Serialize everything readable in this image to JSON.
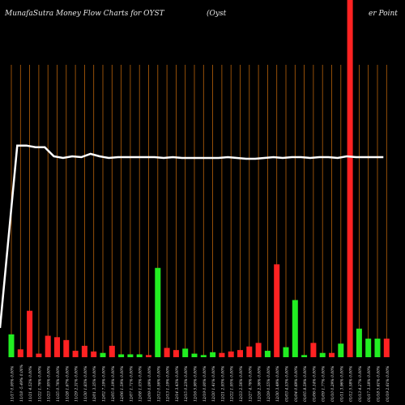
{
  "header": {
    "title": "MunafaSutra  Money Flow  Charts for OYST",
    "company_left": "(Oyst",
    "company_right": "er Point"
  },
  "colors": {
    "background": "#000000",
    "grid": "#b8620a",
    "up": "#22ee22",
    "down": "#ff2222",
    "line": "#ffffff",
    "text": "#e8e8e8"
  },
  "chart_data": {
    "type": "bar",
    "grid": "vertical",
    "categories": [
      "11/17 0.00% 0.00%",
      "11/18 -5.49% 0.00%",
      "11/21 4.52% 0.00%",
      "11/22 1.76% 0.00%",
      "11/23 7.95% 0.00%",
      "11/25 0.76% 0.00%",
      "11/28 1.67% 0.00%",
      "11/29 2.31% 0.00%",
      "11/30 1.83% 0.00%",
      "12/01 3.35% 0.00%",
      "12/02 7.19% 0.00%",
      "12/05 0.19% 0.00%",
      "12/06 1.59% 0.00%",
      "12/07 1.71% 0.00%",
      "12/08 1.03% 0.00%",
      "12/09 0.09% 0.00%",
      "12/12 0.56% 0.00%",
      "12/13 1.19% 0.00%",
      "12/14 3.43% 0.00%",
      "12/15 0.23% 0.00%",
      "12/16 5.90% 0.00%",
      "12/19 0.00% 0.00%",
      "12/20 1.41% 0.00%",
      "12/21 2.93% 0.00%",
      "12/22 1.95% 0.00%",
      "12/23 2.56% 0.00%",
      "12/27 4.76% 0.00%",
      "12/28 2.36% 0.00%",
      "12/29 0.55% 0.00%",
      "12/30 3.49% 0.00%",
      "01/03 4.53% 0.00%",
      "01/04 0.69% 0.00%",
      "01/05 8.59% 0.00%",
      "01/06 0.14% 0.00%",
      "01/09 1.77% 0.00%",
      "01/10 0.29% 0.00%",
      "01/11 3.96% 0.00%",
      "01/12 5.58% 0.00%",
      "01/13 4.27% 0.00%",
      "01/17 3.18% 0.00%",
      "01/18 5.61% 0.00%",
      "01/19 2.61% 0.00%"
    ],
    "series": [
      {
        "direction": [
          "up",
          "down",
          "down",
          "down",
          "down",
          "down",
          "down",
          "down",
          "down",
          "down",
          "up",
          "down",
          "up",
          "up",
          "up",
          "down",
          "up",
          "down",
          "down",
          "up",
          "up",
          "up",
          "up",
          "down",
          "down",
          "down",
          "down",
          "down",
          "up",
          "down",
          "up",
          "up",
          "up",
          "down",
          "up",
          "down",
          "up",
          "down",
          "up",
          "up",
          "up",
          "down"
        ],
        "values": [
          32,
          11,
          65,
          5,
          30,
          28,
          24,
          9,
          16,
          8,
          6,
          16,
          4,
          4,
          4,
          3,
          125,
          13,
          10,
          12,
          5,
          3,
          7,
          6,
          8,
          10,
          15,
          20,
          9,
          130,
          14,
          80,
          3,
          20,
          6,
          6,
          19,
          500,
          40,
          26,
          26,
          26
        ]
      }
    ],
    "line": [
      45,
      265,
      265,
      263,
      263,
      252,
      250,
      252,
      251,
      255,
      252,
      250,
      251,
      251,
      251,
      251,
      251,
      250,
      251,
      250,
      250,
      250,
      250,
      250,
      251,
      250,
      249,
      249,
      250,
      251,
      250,
      251,
      251,
      250,
      251,
      251,
      250,
      252,
      251,
      251,
      251,
      251
    ]
  }
}
